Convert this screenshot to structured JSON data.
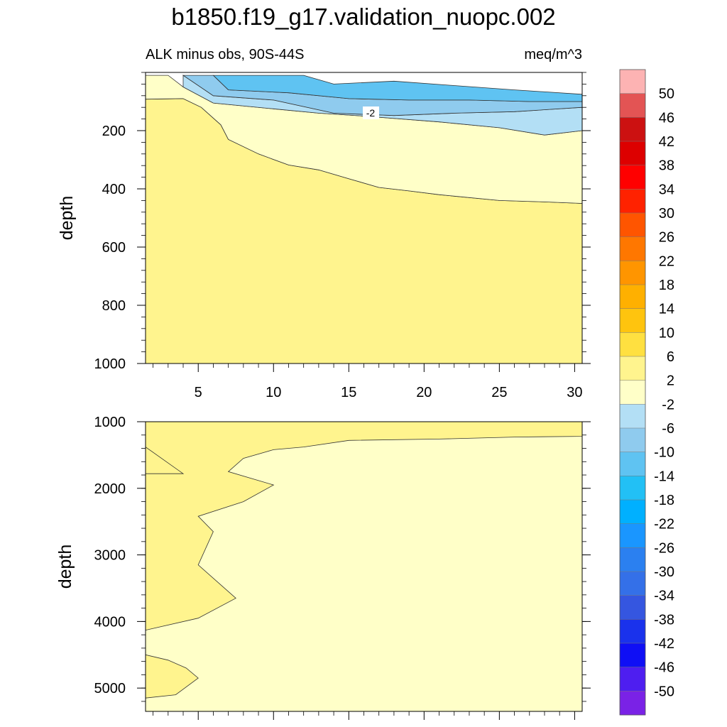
{
  "chart_data": {
    "type": "contour",
    "title": "b1850.f19_g17.validation_nuopc.002",
    "subtitle_left": "ALK minus obs, 90S-44S",
    "subtitle_right": "meq/m^3",
    "colorbar": {
      "levels": [
        "50",
        "46",
        "42",
        "38",
        "34",
        "30",
        "26",
        "22",
        "18",
        "14",
        "10",
        "6",
        "2",
        "-2",
        "-6",
        "-10",
        "-14",
        "-18",
        "-22",
        "-26",
        "-30",
        "-34",
        "-38",
        "-42",
        "-46",
        "-50"
      ],
      "colors": [
        "#fdb3b3",
        "#e35454",
        "#cc1111",
        "#dd0000",
        "#ff0000",
        "#ff2200",
        "#ff5500",
        "#ff7700",
        "#ff9500",
        "#ffb000",
        "#ffc40e",
        "#ffe040",
        "#fff48e",
        "#ffffc8",
        "#b3dff5",
        "#8fcbee",
        "#5fc3f2",
        "#22c0f5",
        "#00b0ff",
        "#1a96ff",
        "#2b80f0",
        "#3470e8",
        "#3556e0",
        "#1a32ec",
        "#0f0ff5",
        "#4e1ef0",
        "#7a22e6"
      ]
    },
    "panels": [
      {
        "name": "upper",
        "ylabel": "depth",
        "ylim": [
          0,
          1000
        ],
        "y_ticks": [
          "200",
          "400",
          "600",
          "800",
          "1000"
        ],
        "y_tick_values": [
          200,
          400,
          600,
          800,
          1000
        ],
        "xlim": [
          1.5,
          30.5
        ],
        "x_ticks": [
          "5",
          "10",
          "15",
          "20",
          "25",
          "30"
        ],
        "x_tick_values": [
          5,
          10,
          15,
          20,
          25,
          30
        ],
        "contour_label": "-2",
        "regions": [
          {
            "band": "2 to 6",
            "color": "#fff48e",
            "boundary": [
              [
                1.5,
                1000
              ],
              [
                30.5,
                1000
              ],
              [
                30.5,
                450
              ],
              [
                28,
                445
              ],
              [
                25,
                440
              ],
              [
                21,
                420
              ],
              [
                19,
                407
              ],
              [
                17,
                395
              ],
              [
                15,
                365
              ],
              [
                13,
                335
              ],
              [
                11,
                318
              ],
              [
                9,
                280
              ],
              [
                7,
                230
              ],
              [
                6.5,
                180
              ],
              [
                5.2,
                120
              ],
              [
                4,
                90
              ],
              [
                1.5,
                92
              ]
            ]
          },
          {
            "band": "-2 to 2",
            "color": "#ffffc8",
            "boundary": [
              [
                1.5,
                92
              ],
              [
                4,
                90
              ],
              [
                5.2,
                120
              ],
              [
                6.5,
                180
              ],
              [
                7,
                230
              ],
              [
                9,
                280
              ],
              [
                11,
                318
              ],
              [
                13,
                335
              ],
              [
                15,
                365
              ],
              [
                17,
                395
              ],
              [
                19,
                407
              ],
              [
                21,
                420
              ],
              [
                25,
                440
              ],
              [
                28,
                445
              ],
              [
                30.5,
                450
              ],
              [
                30.5,
                200
              ],
              [
                28,
                215
              ],
              [
                25,
                190
              ],
              [
                21,
                170
              ],
              [
                16,
                150
              ],
              [
                13,
                140
              ],
              [
                10,
                125
              ],
              [
                6,
                105
              ],
              [
                4,
                50
              ],
              [
                3,
                10
              ],
              [
                1.5,
                10
              ]
            ]
          },
          {
            "band": "-6 to -2",
            "color": "#b3dff5",
            "boundary": [
              [
                4,
                10
              ],
              [
                6,
                80
              ],
              [
                10,
                95
              ],
              [
                14,
                140
              ],
              [
                18,
                148
              ],
              [
                22,
                140
              ],
              [
                26,
                135
              ],
              [
                30.5,
                120
              ],
              [
                30.5,
                200
              ],
              [
                28,
                215
              ],
              [
                25,
                190
              ],
              [
                21,
                170
              ],
              [
                16,
                150
              ],
              [
                13,
                140
              ],
              [
                10,
                125
              ],
              [
                6,
                105
              ],
              [
                4,
                50
              ]
            ]
          },
          {
            "band": "-10 to -6",
            "color": "#8fcbee",
            "boundary": [
              [
                6,
                10
              ],
              [
                7,
                60
              ],
              [
                11,
                70
              ],
              [
                15,
                90
              ],
              [
                19,
                95
              ],
              [
                23,
                95
              ],
              [
                27,
                100
              ],
              [
                30.5,
                100
              ],
              [
                30.5,
                120
              ],
              [
                26,
                135
              ],
              [
                22,
                140
              ],
              [
                18,
                148
              ],
              [
                14,
                140
              ],
              [
                10,
                95
              ],
              [
                6,
                80
              ],
              [
                4,
                10
              ]
            ]
          },
          {
            "band": "-14 to -10",
            "color": "#5fc3f2",
            "boundary": [
              [
                12,
                10
              ],
              [
                14,
                40
              ],
              [
                18,
                30
              ],
              [
                22,
                45
              ],
              [
                26,
                60
              ],
              [
                30.5,
                75
              ],
              [
                30.5,
                100
              ],
              [
                27,
                100
              ],
              [
                23,
                95
              ],
              [
                19,
                95
              ],
              [
                15,
                90
              ],
              [
                11,
                70
              ],
              [
                7,
                60
              ],
              [
                6,
                10
              ]
            ]
          }
        ]
      },
      {
        "name": "lower",
        "ylabel": "depth",
        "ylim": [
          1000,
          5350
        ],
        "y_ticks": [
          "1000",
          "2000",
          "3000",
          "4000",
          "5000"
        ],
        "y_tick_values": [
          1000,
          2000,
          3000,
          4000,
          5000
        ],
        "xlim": [
          1.5,
          30.5
        ],
        "regions": [
          {
            "band": "-2 to 2",
            "color": "#ffffc8",
            "boundary": [
              [
                1.5,
                1000
              ],
              [
                30.5,
                1000
              ],
              [
                30.5,
                5350
              ],
              [
                1.5,
                5350
              ]
            ]
          },
          {
            "band": "2 to 6",
            "color": "#fff48e",
            "boundary": [
              [
                1.5,
                1000
              ],
              [
                30.5,
                1000
              ],
              [
                30.5,
                1220
              ],
              [
                26,
                1230
              ],
              [
                21,
                1260
              ],
              [
                15,
                1280
              ],
              [
                12,
                1380
              ],
              [
                10,
                1420
              ],
              [
                8,
                1550
              ],
              [
                7,
                1750
              ],
              [
                10,
                1950
              ],
              [
                8,
                2200
              ],
              [
                5,
                2420
              ],
              [
                6,
                2650
              ],
              [
                5,
                3150
              ],
              [
                6.5,
                3450
              ],
              [
                7.5,
                3650
              ],
              [
                5,
                3950
              ],
              [
                1.5,
                4130
              ],
              [
                1.5,
                1380
              ],
              [
                4,
                1780
              ],
              [
                1.5,
                1780
              ]
            ]
          },
          {
            "band": "2 to 6",
            "color": "#fff48e",
            "boundary": [
              [
                1.5,
                4500
              ],
              [
                3,
                4580
              ],
              [
                4.2,
                4700
              ],
              [
                5,
                4850
              ],
              [
                3.5,
                5100
              ],
              [
                1.5,
                5150
              ]
            ]
          }
        ]
      }
    ]
  }
}
